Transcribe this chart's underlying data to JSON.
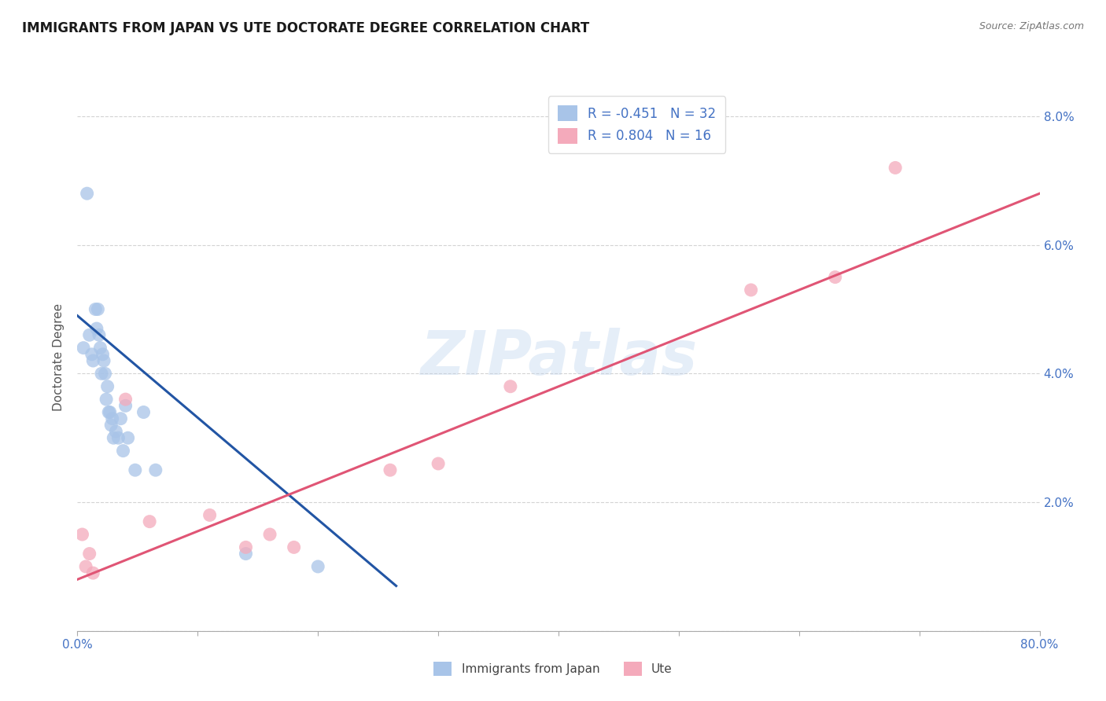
{
  "title": "IMMIGRANTS FROM JAPAN VS UTE DOCTORATE DEGREE CORRELATION CHART",
  "source_text": "Source: ZipAtlas.com",
  "ylabel": "Doctorate Degree",
  "R1": -0.451,
  "N1": 32,
  "R2": 0.804,
  "N2": 16,
  "legend_label1": "Immigrants from Japan",
  "legend_label2": "Ute",
  "xlim": [
    0,
    0.8
  ],
  "ylim": [
    0,
    0.085
  ],
  "xticks": [
    0.0,
    0.1,
    0.2,
    0.3,
    0.4,
    0.5,
    0.6,
    0.7,
    0.8
  ],
  "x_edge_labels": [
    "0.0%",
    "80.0%"
  ],
  "yticks": [
    0.0,
    0.02,
    0.04,
    0.06,
    0.08
  ],
  "yticklabels_right": [
    "",
    "2.0%",
    "4.0%",
    "6.0%",
    "8.0%"
  ],
  "color_blue": "#A8C4E8",
  "color_pink": "#F4AABB",
  "line_blue": "#2255A4",
  "line_pink": "#E05575",
  "background": "#FFFFFF",
  "grid_color": "#C8C8C8",
  "watermark": "ZIPatlas",
  "blue_points_x": [
    0.005,
    0.008,
    0.01,
    0.012,
    0.013,
    0.015,
    0.016,
    0.017,
    0.018,
    0.019,
    0.02,
    0.021,
    0.022,
    0.023,
    0.024,
    0.025,
    0.026,
    0.027,
    0.028,
    0.029,
    0.03,
    0.032,
    0.034,
    0.036,
    0.038,
    0.04,
    0.042,
    0.048,
    0.055,
    0.065,
    0.14,
    0.2
  ],
  "blue_points_y": [
    0.044,
    0.068,
    0.046,
    0.043,
    0.042,
    0.05,
    0.047,
    0.05,
    0.046,
    0.044,
    0.04,
    0.043,
    0.042,
    0.04,
    0.036,
    0.038,
    0.034,
    0.034,
    0.032,
    0.033,
    0.03,
    0.031,
    0.03,
    0.033,
    0.028,
    0.035,
    0.03,
    0.025,
    0.034,
    0.025,
    0.012,
    0.01
  ],
  "pink_points_x": [
    0.004,
    0.007,
    0.01,
    0.013,
    0.04,
    0.06,
    0.11,
    0.14,
    0.16,
    0.18,
    0.26,
    0.3,
    0.36,
    0.56,
    0.63,
    0.68
  ],
  "pink_points_y": [
    0.015,
    0.01,
    0.012,
    0.009,
    0.036,
    0.017,
    0.018,
    0.013,
    0.015,
    0.013,
    0.025,
    0.026,
    0.038,
    0.053,
    0.055,
    0.072
  ],
  "blue_line_x0": 0.0,
  "blue_line_x1": 0.265,
  "blue_line_y0": 0.049,
  "blue_line_y1": 0.007,
  "pink_line_x0": 0.0,
  "pink_line_x1": 0.8,
  "pink_line_y0": 0.008,
  "pink_line_y1": 0.068
}
